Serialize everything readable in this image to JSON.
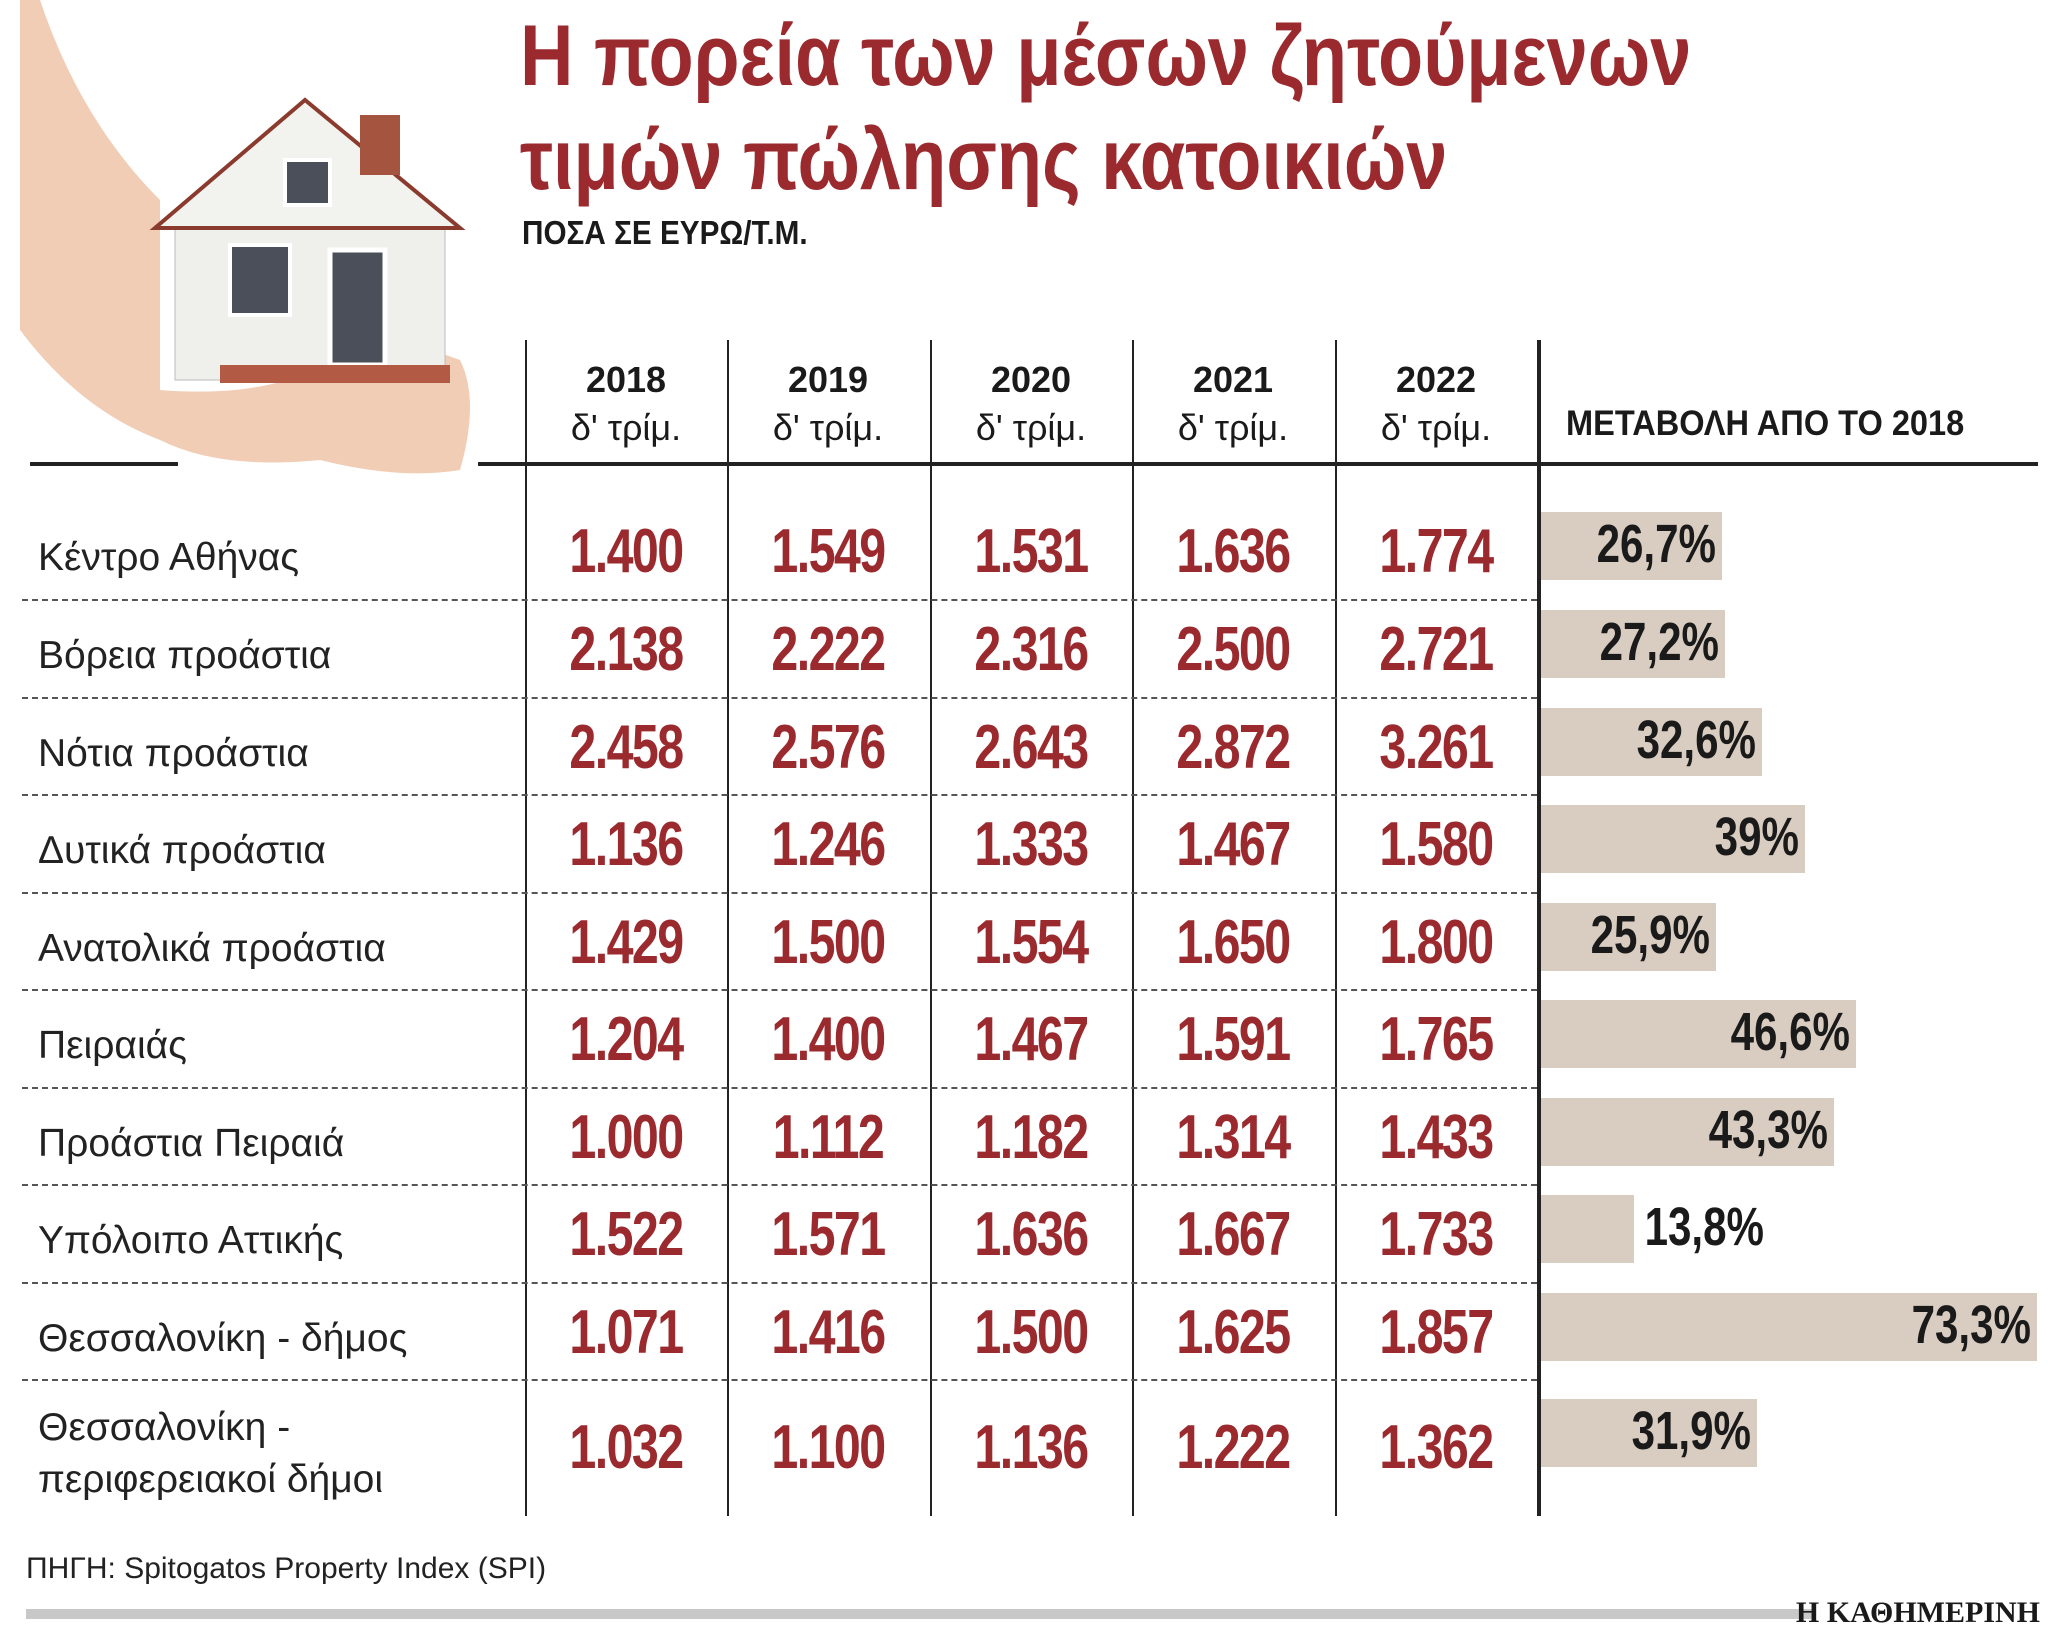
{
  "title_line1": "Η πορεία των μέσων ζητούμενων",
  "title_line2": "τιμών πώλησης κατοικιών",
  "subtitle": "ΠΟΣΑ ΣΕ ΕΥΡΩ/Τ.Μ.",
  "source": "ΠΗΓΗ: Spitogatos Property Index (SPI)",
  "brand": "Η ΚΑΘΗΜΕΡΙΝΗ",
  "colors": {
    "value": "#9b2a2f",
    "bar": "#d9cdc1",
    "title": "#9b2a2f"
  },
  "chart_data": {
    "type": "table",
    "columns": [
      {
        "year": "2018",
        "quarter": "δ' τρίμ."
      },
      {
        "year": "2019",
        "quarter": "δ' τρίμ."
      },
      {
        "year": "2020",
        "quarter": "δ' τρίμ."
      },
      {
        "year": "2021",
        "quarter": "δ' τρίμ."
      },
      {
        "year": "2022",
        "quarter": "δ' τρίμ."
      }
    ],
    "change_header": "ΜΕΤΑΒΟΛΗ ΑΠΟ ΤΟ 2018",
    "rows": [
      {
        "label": "Κέντρο Αθήνας",
        "values": [
          "1.400",
          "1.549",
          "1.531",
          "1.636",
          "1.774"
        ],
        "change": "26,7%",
        "change_value": 26.7
      },
      {
        "label": "Βόρεια προάστια",
        "values": [
          "2.138",
          "2.222",
          "2.316",
          "2.500",
          "2.721"
        ],
        "change": "27,2%",
        "change_value": 27.2
      },
      {
        "label": "Νότια προάστια",
        "values": [
          "2.458",
          "2.576",
          "2.643",
          "2.872",
          "3.261"
        ],
        "change": "32,6%",
        "change_value": 32.6
      },
      {
        "label": "Δυτικά προάστια",
        "values": [
          "1.136",
          "1.246",
          "1.333",
          "1.467",
          "1.580"
        ],
        "change": "39%",
        "change_value": 39
      },
      {
        "label": "Ανατολικά προάστια",
        "values": [
          "1.429",
          "1.500",
          "1.554",
          "1.650",
          "1.800"
        ],
        "change": "25,9%",
        "change_value": 25.9
      },
      {
        "label": "Πειραιάς",
        "values": [
          "1.204",
          "1.400",
          "1.467",
          "1.591",
          "1.765"
        ],
        "change": "46,6%",
        "change_value": 46.6
      },
      {
        "label": "Προάστια Πειραιά",
        "values": [
          "1.000",
          "1.112",
          "1.182",
          "1.314",
          "1.433"
        ],
        "change": "43,3%",
        "change_value": 43.3
      },
      {
        "label": "Υπόλοιπο Αττικής",
        "values": [
          "1.522",
          "1.571",
          "1.636",
          "1.667",
          "1.733"
        ],
        "change": "13,8%",
        "change_value": 13.8
      },
      {
        "label": "Θεσσαλονίκη - δήμος",
        "values": [
          "1.071",
          "1.416",
          "1.500",
          "1.625",
          "1.857"
        ],
        "change": "73,3%",
        "change_value": 73.3
      },
      {
        "label": "Θεσσαλονίκη -\nπεριφερειακοί δήμοι",
        "values": [
          "1.032",
          "1.100",
          "1.136",
          "1.222",
          "1.362"
        ],
        "change": "31,9%",
        "change_value": 31.9
      }
    ]
  }
}
